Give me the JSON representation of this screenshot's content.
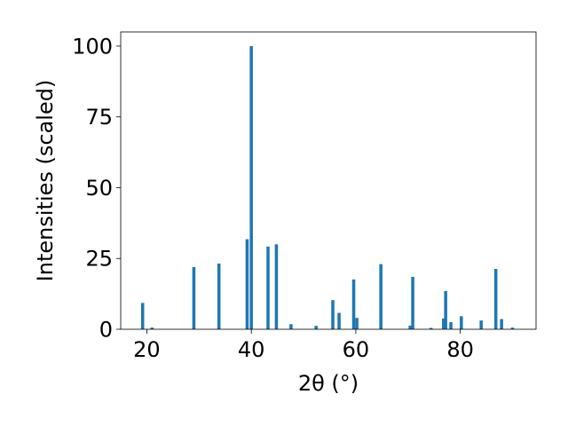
{
  "chart_data": {
    "type": "bar",
    "xlabel": "2θ (°)",
    "ylabel": "Intensities (scaled)",
    "xlim": [
      15,
      94.5
    ],
    "ylim": [
      0,
      105
    ],
    "xticks": [
      20,
      40,
      60,
      80
    ],
    "yticks": [
      0,
      25,
      50,
      75,
      100
    ],
    "grid": false,
    "bar_width": 0.6,
    "bar_color": "#1f77b4",
    "points": [
      {
        "x": 19.2,
        "y": 9.3
      },
      {
        "x": 21.0,
        "y": 0.6
      },
      {
        "x": 29.0,
        "y": 22.0
      },
      {
        "x": 33.8,
        "y": 23.2
      },
      {
        "x": 39.2,
        "y": 31.8
      },
      {
        "x": 40.0,
        "y": 100.0
      },
      {
        "x": 43.2,
        "y": 29.2
      },
      {
        "x": 44.8,
        "y": 30.0
      },
      {
        "x": 47.6,
        "y": 1.8
      },
      {
        "x": 52.4,
        "y": 1.2
      },
      {
        "x": 55.6,
        "y": 10.3
      },
      {
        "x": 56.8,
        "y": 5.8
      },
      {
        "x": 59.6,
        "y": 17.6
      },
      {
        "x": 60.2,
        "y": 4.0
      },
      {
        "x": 64.8,
        "y": 23.0
      },
      {
        "x": 70.4,
        "y": 1.3
      },
      {
        "x": 70.9,
        "y": 18.5
      },
      {
        "x": 74.4,
        "y": 0.5
      },
      {
        "x": 76.8,
        "y": 3.8
      },
      {
        "x": 77.2,
        "y": 13.5
      },
      {
        "x": 78.2,
        "y": 2.5
      },
      {
        "x": 80.2,
        "y": 4.6
      },
      {
        "x": 84.0,
        "y": 3.1
      },
      {
        "x": 86.8,
        "y": 21.3
      },
      {
        "x": 87.9,
        "y": 3.6
      },
      {
        "x": 90.0,
        "y": 0.6
      }
    ]
  }
}
